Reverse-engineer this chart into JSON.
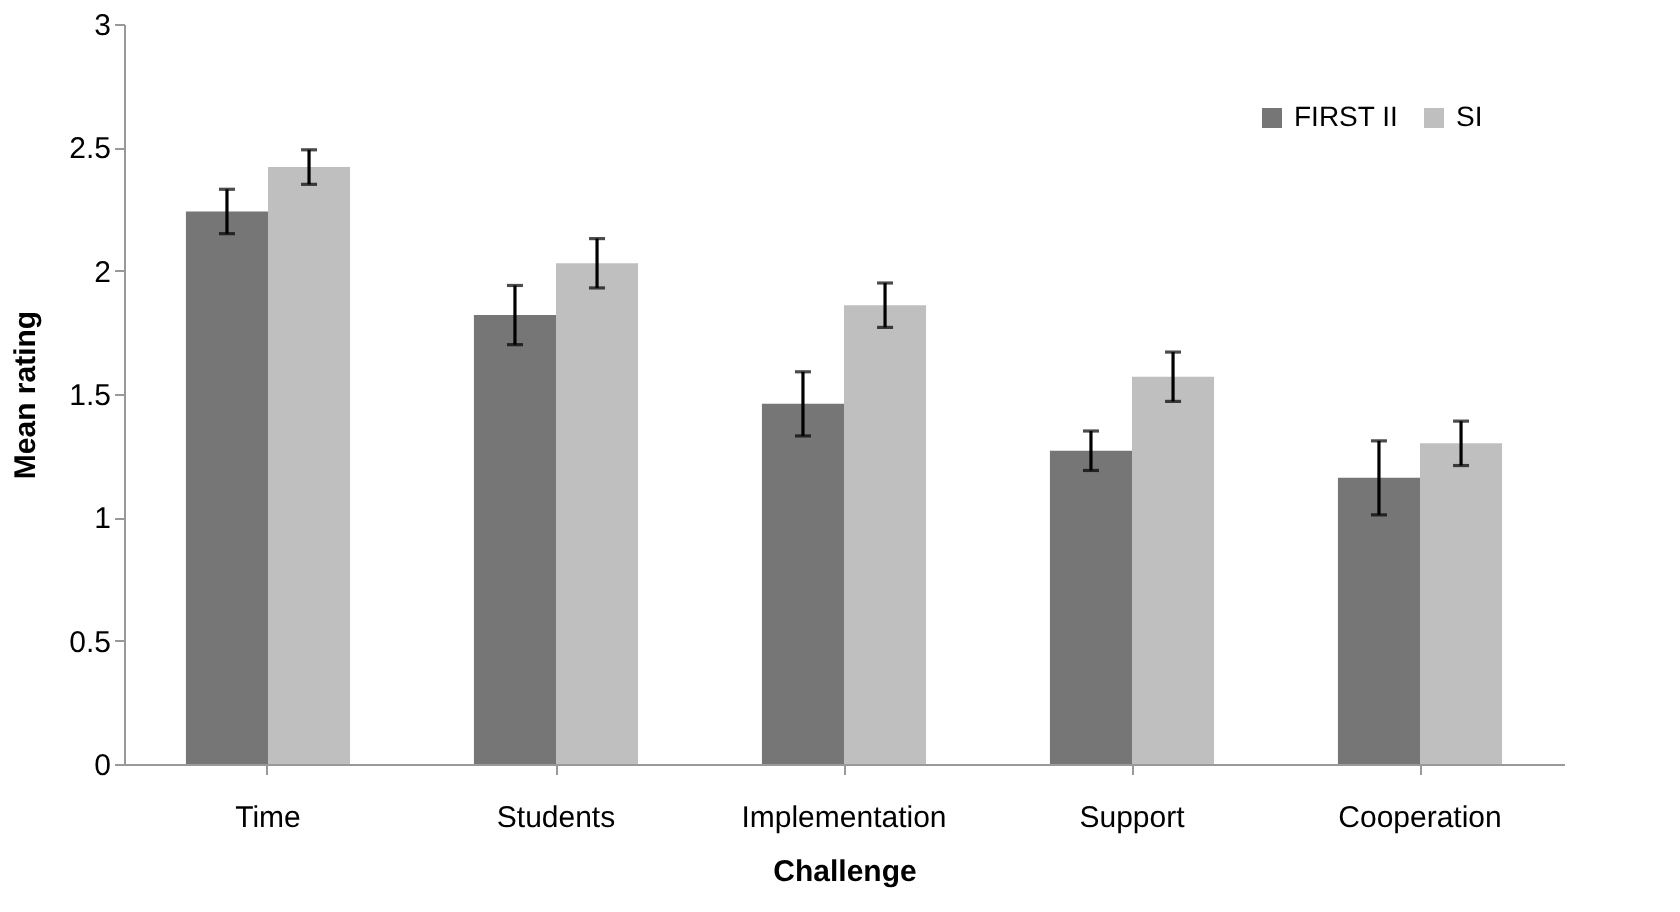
{
  "chart_data": {
    "type": "bar",
    "xlabel": "Challenge",
    "ylabel": "Mean rating",
    "categories": [
      "Time",
      "Students",
      "Implementation",
      "Support",
      "Cooperation"
    ],
    "series": [
      {
        "name": "FIRST II",
        "color": "#767676",
        "values": [
          2.24,
          1.82,
          1.46,
          1.27,
          1.16
        ],
        "errors": [
          0.09,
          0.12,
          0.13,
          0.08,
          0.15
        ]
      },
      {
        "name": "SI",
        "color": "#bfbfbf",
        "values": [
          2.42,
          2.03,
          1.86,
          1.57,
          1.3
        ],
        "errors": [
          0.07,
          0.1,
          0.09,
          0.1,
          0.09
        ]
      }
    ],
    "ylim": [
      0,
      3
    ],
    "yticks": [
      0,
      0.5,
      1,
      1.5,
      2,
      2.5,
      3
    ],
    "grid": false,
    "legend": "top right"
  }
}
